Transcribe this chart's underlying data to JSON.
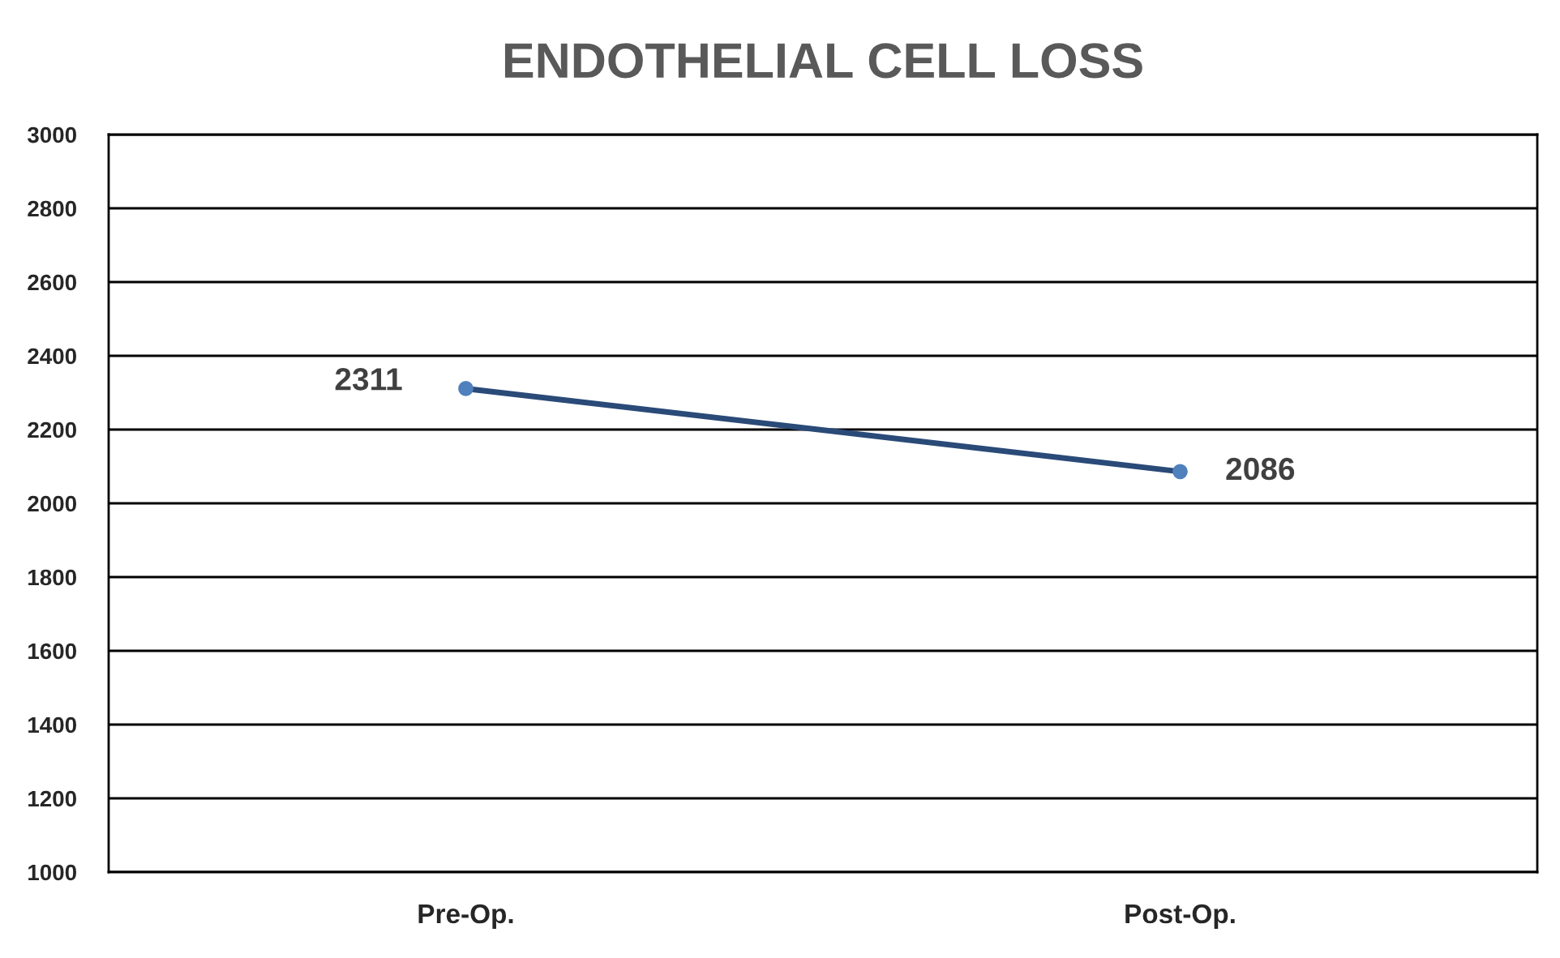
{
  "chart_data": {
    "type": "line",
    "title": "ENDOTHELIAL CELL LOSS",
    "categories": [
      "Pre-Op.",
      "Post-Op."
    ],
    "series": [
      {
        "color": "#2a4a78",
        "values": [
          2311,
          2086
        ]
      }
    ],
    "ylim": [
      1000,
      3000
    ],
    "yticks": [
      1000,
      1200,
      1400,
      1600,
      1800,
      2000,
      2200,
      2400,
      2600,
      2800,
      3000
    ],
    "grid": "y",
    "marker": "circle",
    "line_style": "solid",
    "data_labels": true,
    "legend": false
  }
}
